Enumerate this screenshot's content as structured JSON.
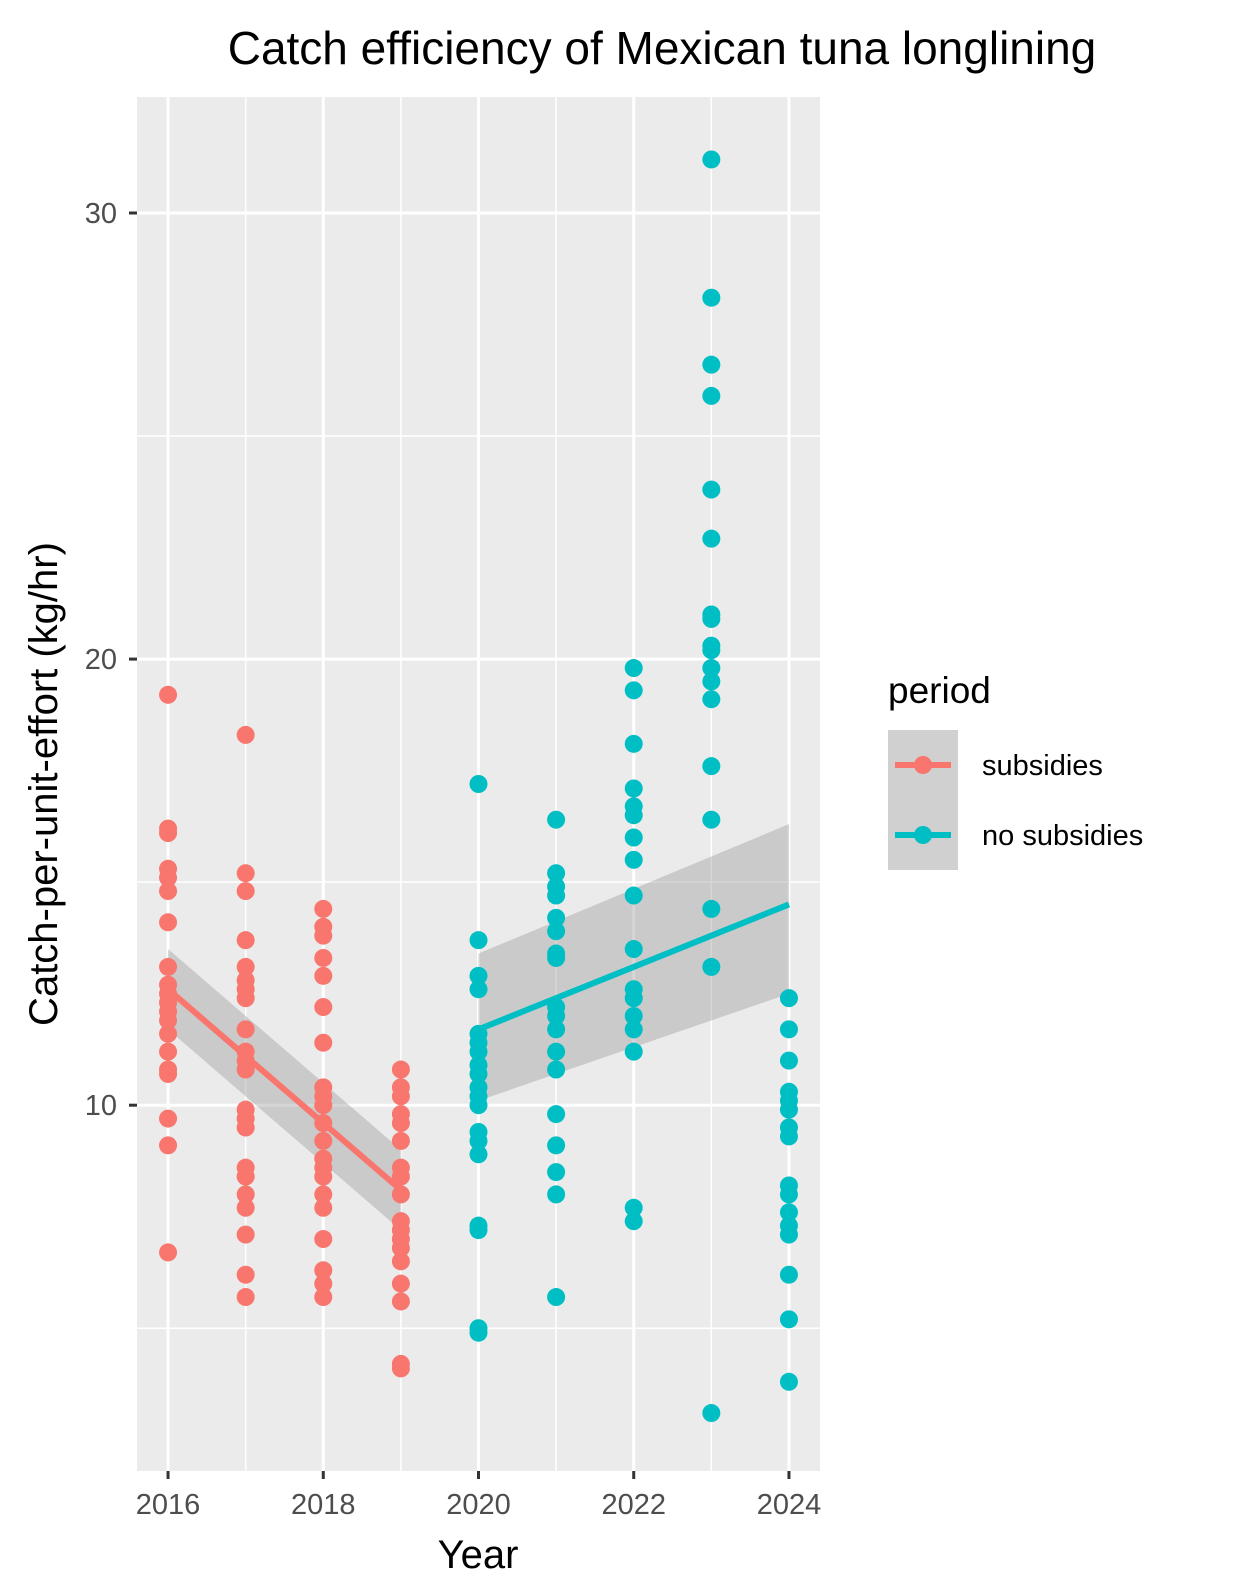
{
  "chart_data": {
    "type": "scatter",
    "title": "Catch efficiency of Mexican tuna longlining",
    "xlabel": "Year",
    "ylabel": "Catch-per-unit-effort (kg/hr)",
    "xlim": [
      2015.6,
      2024.4
    ],
    "ylim": [
      1.8,
      32.6
    ],
    "x_ticks": [
      2016,
      2018,
      2020,
      2022,
      2024
    ],
    "y_ticks": [
      10,
      20,
      30
    ],
    "grid": true,
    "legend": {
      "title": "period",
      "position": "right",
      "entries": [
        "subsidies",
        "no subsidies"
      ]
    },
    "colors": {
      "subsidies": "#F8766D",
      "no subsidies": "#00BFC4",
      "ribbon": "#999999",
      "panel": "#EBEBEB",
      "grid": "#FFFFFF"
    },
    "series": [
      {
        "name": "subsidies",
        "color": "#F8766D",
        "points": [
          {
            "x": 2016,
            "y": 19.2
          },
          {
            "x": 2016,
            "y": 16.2
          },
          {
            "x": 2016,
            "y": 16.1
          },
          {
            "x": 2016,
            "y": 15.3
          },
          {
            "x": 2016,
            "y": 15.1
          },
          {
            "x": 2016,
            "y": 14.8
          },
          {
            "x": 2016,
            "y": 14.1
          },
          {
            "x": 2016,
            "y": 13.1
          },
          {
            "x": 2016,
            "y": 12.7
          },
          {
            "x": 2016,
            "y": 12.5
          },
          {
            "x": 2016,
            "y": 12.3
          },
          {
            "x": 2016,
            "y": 12.1
          },
          {
            "x": 2016,
            "y": 11.9
          },
          {
            "x": 2016,
            "y": 11.6
          },
          {
            "x": 2016,
            "y": 11.2
          },
          {
            "x": 2016,
            "y": 10.8
          },
          {
            "x": 2016,
            "y": 10.7
          },
          {
            "x": 2016,
            "y": 9.7
          },
          {
            "x": 2016,
            "y": 9.1
          },
          {
            "x": 2016,
            "y": 6.7
          },
          {
            "x": 2017,
            "y": 18.3
          },
          {
            "x": 2017,
            "y": 15.2
          },
          {
            "x": 2017,
            "y": 14.8
          },
          {
            "x": 2017,
            "y": 13.7
          },
          {
            "x": 2017,
            "y": 13.1
          },
          {
            "x": 2017,
            "y": 12.8
          },
          {
            "x": 2017,
            "y": 12.6
          },
          {
            "x": 2017,
            "y": 12.4
          },
          {
            "x": 2017,
            "y": 11.7
          },
          {
            "x": 2017,
            "y": 11.2
          },
          {
            "x": 2017,
            "y": 11.0
          },
          {
            "x": 2017,
            "y": 10.8
          },
          {
            "x": 2017,
            "y": 9.9
          },
          {
            "x": 2017,
            "y": 9.7
          },
          {
            "x": 2017,
            "y": 9.5
          },
          {
            "x": 2017,
            "y": 8.6
          },
          {
            "x": 2017,
            "y": 8.4
          },
          {
            "x": 2017,
            "y": 8.0
          },
          {
            "x": 2017,
            "y": 7.7
          },
          {
            "x": 2017,
            "y": 7.1
          },
          {
            "x": 2017,
            "y": 6.2
          },
          {
            "x": 2017,
            "y": 5.7
          },
          {
            "x": 2018,
            "y": 14.4
          },
          {
            "x": 2018,
            "y": 14.0
          },
          {
            "x": 2018,
            "y": 13.8
          },
          {
            "x": 2018,
            "y": 13.3
          },
          {
            "x": 2018,
            "y": 12.9
          },
          {
            "x": 2018,
            "y": 12.2
          },
          {
            "x": 2018,
            "y": 11.4
          },
          {
            "x": 2018,
            "y": 10.4
          },
          {
            "x": 2018,
            "y": 10.2
          },
          {
            "x": 2018,
            "y": 10.0
          },
          {
            "x": 2018,
            "y": 9.6
          },
          {
            "x": 2018,
            "y": 9.2
          },
          {
            "x": 2018,
            "y": 8.8
          },
          {
            "x": 2018,
            "y": 8.6
          },
          {
            "x": 2018,
            "y": 8.4
          },
          {
            "x": 2018,
            "y": 8.0
          },
          {
            "x": 2018,
            "y": 7.7
          },
          {
            "x": 2018,
            "y": 7.0
          },
          {
            "x": 2018,
            "y": 6.3
          },
          {
            "x": 2018,
            "y": 6.0
          },
          {
            "x": 2018,
            "y": 5.7
          },
          {
            "x": 2019,
            "y": 10.8
          },
          {
            "x": 2019,
            "y": 10.4
          },
          {
            "x": 2019,
            "y": 10.2
          },
          {
            "x": 2019,
            "y": 9.8
          },
          {
            "x": 2019,
            "y": 9.6
          },
          {
            "x": 2019,
            "y": 9.2
          },
          {
            "x": 2019,
            "y": 8.6
          },
          {
            "x": 2019,
            "y": 8.4
          },
          {
            "x": 2019,
            "y": 8.0
          },
          {
            "x": 2019,
            "y": 7.4
          },
          {
            "x": 2019,
            "y": 7.2
          },
          {
            "x": 2019,
            "y": 7.0
          },
          {
            "x": 2019,
            "y": 6.8
          },
          {
            "x": 2019,
            "y": 6.5
          },
          {
            "x": 2019,
            "y": 6.0
          },
          {
            "x": 2019,
            "y": 5.6
          },
          {
            "x": 2019,
            "y": 4.2
          },
          {
            "x": 2019,
            "y": 4.1
          }
        ]
      },
      {
        "name": "no subsidies",
        "color": "#00BFC4",
        "points": [
          {
            "x": 2020,
            "y": 17.2
          },
          {
            "x": 2020,
            "y": 13.7
          },
          {
            "x": 2020,
            "y": 12.9
          },
          {
            "x": 2020,
            "y": 12.6
          },
          {
            "x": 2020,
            "y": 11.6
          },
          {
            "x": 2020,
            "y": 11.4
          },
          {
            "x": 2020,
            "y": 11.2
          },
          {
            "x": 2020,
            "y": 10.9
          },
          {
            "x": 2020,
            "y": 10.7
          },
          {
            "x": 2020,
            "y": 10.4
          },
          {
            "x": 2020,
            "y": 10.2
          },
          {
            "x": 2020,
            "y": 10.0
          },
          {
            "x": 2020,
            "y": 9.4
          },
          {
            "x": 2020,
            "y": 9.2
          },
          {
            "x": 2020,
            "y": 8.9
          },
          {
            "x": 2020,
            "y": 7.3
          },
          {
            "x": 2020,
            "y": 7.2
          },
          {
            "x": 2020,
            "y": 5.0
          },
          {
            "x": 2020,
            "y": 4.9
          },
          {
            "x": 2021,
            "y": 16.4
          },
          {
            "x": 2021,
            "y": 15.2
          },
          {
            "x": 2021,
            "y": 14.9
          },
          {
            "x": 2021,
            "y": 14.7
          },
          {
            "x": 2021,
            "y": 14.2
          },
          {
            "x": 2021,
            "y": 13.9
          },
          {
            "x": 2021,
            "y": 13.4
          },
          {
            "x": 2021,
            "y": 13.3
          },
          {
            "x": 2021,
            "y": 12.2
          },
          {
            "x": 2021,
            "y": 12.0
          },
          {
            "x": 2021,
            "y": 11.7
          },
          {
            "x": 2021,
            "y": 11.2
          },
          {
            "x": 2021,
            "y": 10.8
          },
          {
            "x": 2021,
            "y": 9.8
          },
          {
            "x": 2021,
            "y": 9.1
          },
          {
            "x": 2021,
            "y": 8.5
          },
          {
            "x": 2021,
            "y": 8.0
          },
          {
            "x": 2021,
            "y": 5.7
          },
          {
            "x": 2022,
            "y": 19.8
          },
          {
            "x": 2022,
            "y": 19.3
          },
          {
            "x": 2022,
            "y": 18.1
          },
          {
            "x": 2022,
            "y": 17.1
          },
          {
            "x": 2022,
            "y": 16.7
          },
          {
            "x": 2022,
            "y": 16.5
          },
          {
            "x": 2022,
            "y": 16.0
          },
          {
            "x": 2022,
            "y": 15.5
          },
          {
            "x": 2022,
            "y": 14.7
          },
          {
            "x": 2022,
            "y": 13.5
          },
          {
            "x": 2022,
            "y": 12.6
          },
          {
            "x": 2022,
            "y": 12.4
          },
          {
            "x": 2022,
            "y": 12.0
          },
          {
            "x": 2022,
            "y": 11.7
          },
          {
            "x": 2022,
            "y": 11.2
          },
          {
            "x": 2022,
            "y": 7.7
          },
          {
            "x": 2022,
            "y": 7.4
          },
          {
            "x": 2023,
            "y": 31.2
          },
          {
            "x": 2023,
            "y": 28.1
          },
          {
            "x": 2023,
            "y": 26.6
          },
          {
            "x": 2023,
            "y": 25.9
          },
          {
            "x": 2023,
            "y": 23.8
          },
          {
            "x": 2023,
            "y": 22.7
          },
          {
            "x": 2023,
            "y": 21.0
          },
          {
            "x": 2023,
            "y": 20.9
          },
          {
            "x": 2023,
            "y": 20.3
          },
          {
            "x": 2023,
            "y": 20.2
          },
          {
            "x": 2023,
            "y": 19.8
          },
          {
            "x": 2023,
            "y": 19.5
          },
          {
            "x": 2023,
            "y": 19.1
          },
          {
            "x": 2023,
            "y": 17.6
          },
          {
            "x": 2023,
            "y": 16.4
          },
          {
            "x": 2023,
            "y": 14.4
          },
          {
            "x": 2023,
            "y": 13.1
          },
          {
            "x": 2023,
            "y": 3.1
          },
          {
            "x": 2024,
            "y": 12.4
          },
          {
            "x": 2024,
            "y": 11.7
          },
          {
            "x": 2024,
            "y": 11.0
          },
          {
            "x": 2024,
            "y": 10.3
          },
          {
            "x": 2024,
            "y": 10.1
          },
          {
            "x": 2024,
            "y": 9.9
          },
          {
            "x": 2024,
            "y": 9.5
          },
          {
            "x": 2024,
            "y": 9.3
          },
          {
            "x": 2024,
            "y": 8.2
          },
          {
            "x": 2024,
            "y": 8.0
          },
          {
            "x": 2024,
            "y": 7.6
          },
          {
            "x": 2024,
            "y": 7.3
          },
          {
            "x": 2024,
            "y": 7.1
          },
          {
            "x": 2024,
            "y": 6.2
          },
          {
            "x": 2024,
            "y": 5.2
          },
          {
            "x": 2024,
            "y": 3.8
          }
        ]
      }
    ],
    "trend_lines": [
      {
        "name": "subsidies",
        "color": "#F8766D",
        "x": [
          2016,
          2019
        ],
        "y": [
          12.6,
          8.1
        ],
        "ci_lower": [
          11.7,
          7.2
        ],
        "ci_upper": [
          13.5,
          9.0
        ]
      },
      {
        "name": "no subsidies",
        "color": "#00BFC4",
        "x": [
          2020,
          2024
        ],
        "y": [
          11.7,
          14.5
        ],
        "ci_lower": [
          10.1,
          12.5
        ],
        "ci_upper": [
          13.4,
          16.3
        ]
      }
    ]
  }
}
